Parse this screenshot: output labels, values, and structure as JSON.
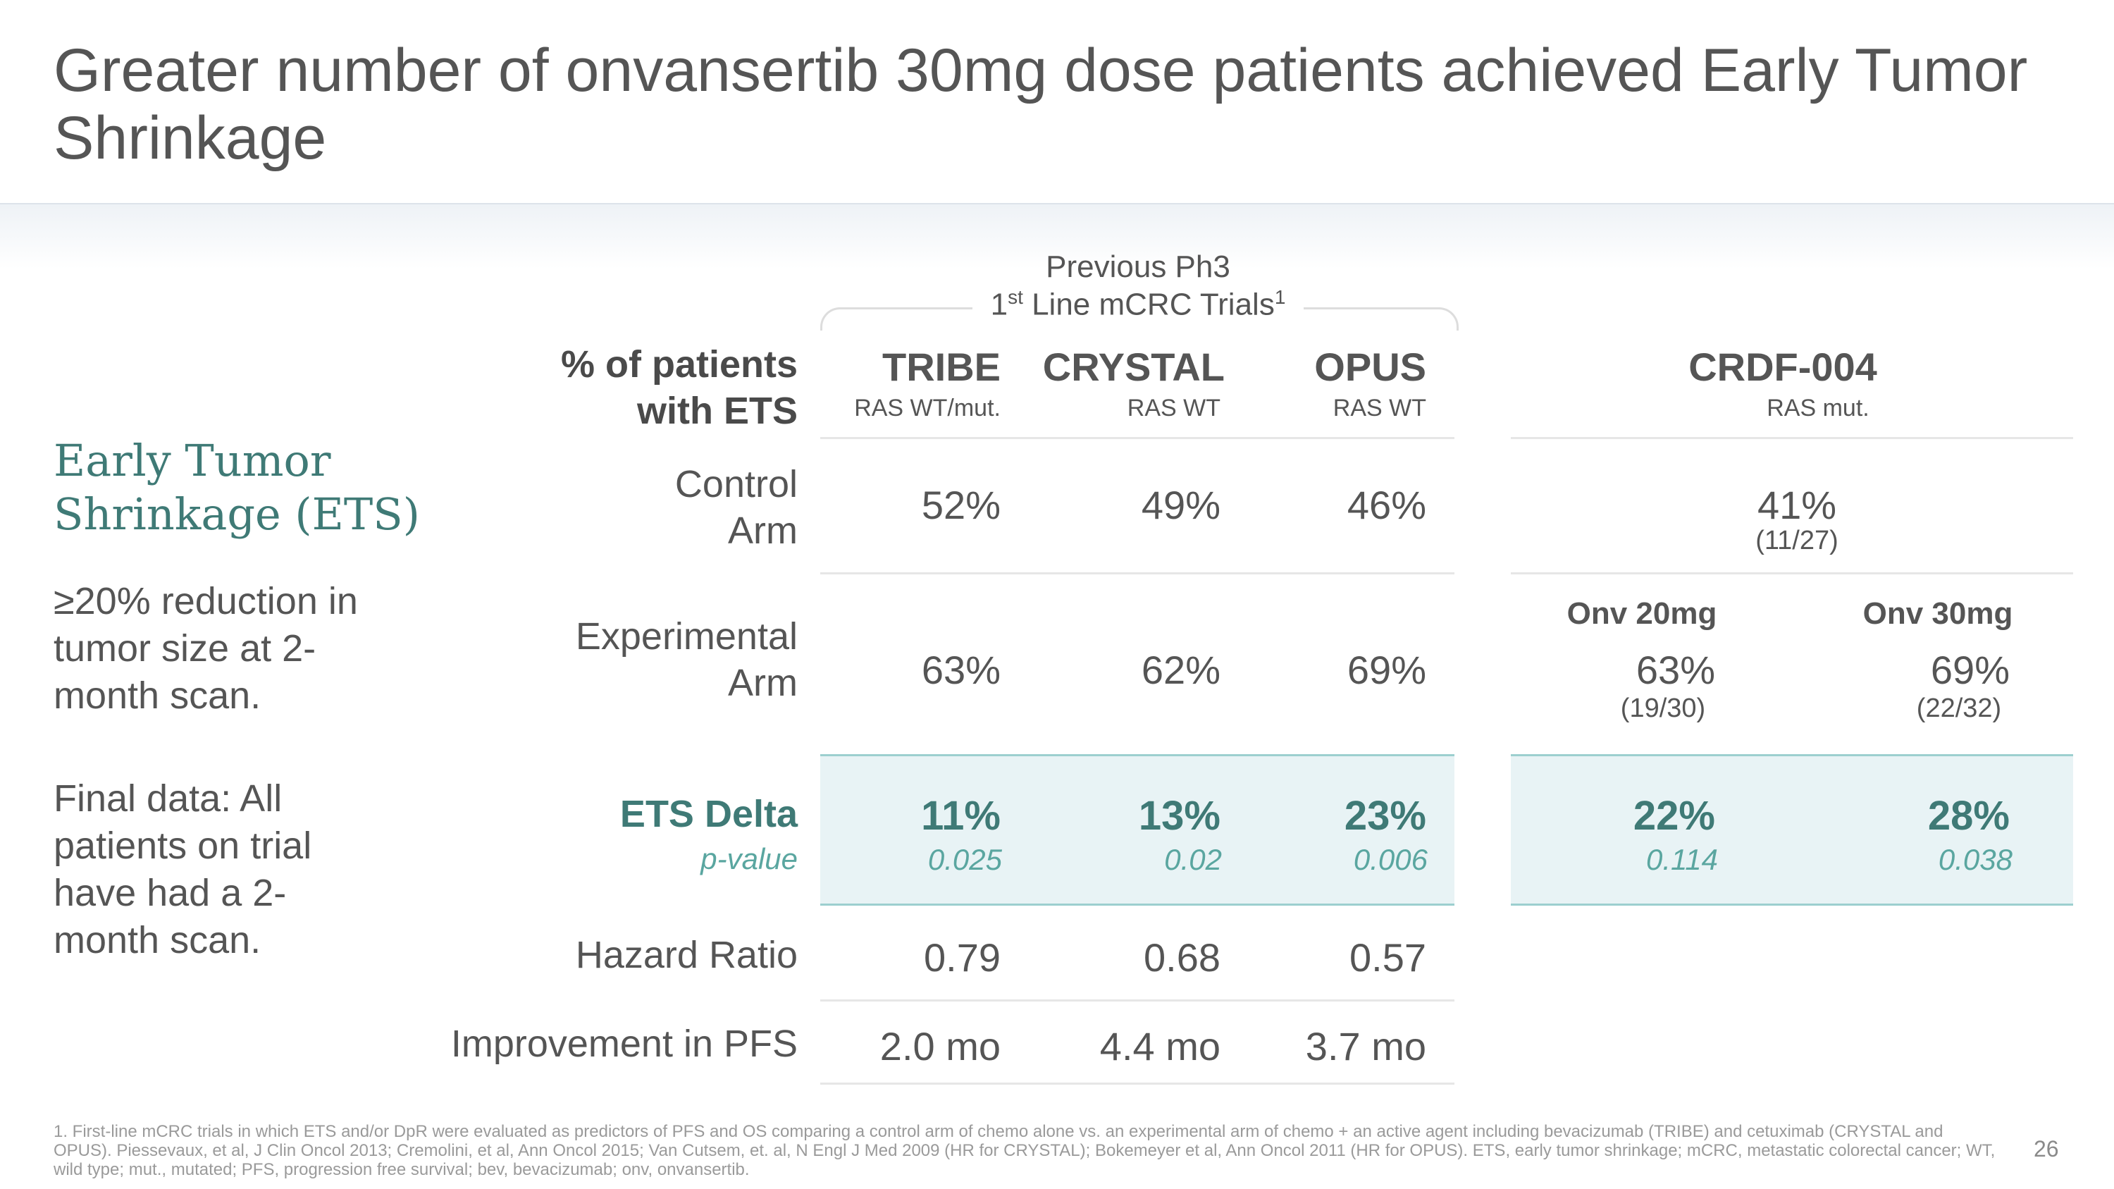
{
  "title": "Greater number of onvansertib 30mg dose patients achieved Early Tumor Shrinkage",
  "sidebar": {
    "heading": "Early Tumor Shrinkage (ETS)",
    "definition": "≥20% reduction in tumor size at 2-month scan.",
    "note": "Final data: All patients on trial have had a 2-month scan."
  },
  "header_group": {
    "line1": "Previous Ph3",
    "line2_prefix": "1",
    "line2_sup": "st",
    "line2_text": " Line mCRC Trials",
    "line2_ref": "1"
  },
  "row_labels": {
    "metric": [
      "% of patients",
      "with ETS"
    ],
    "control": [
      "Control",
      "Arm"
    ],
    "experimental": [
      "Experimental",
      "Arm"
    ],
    "delta": "ETS Delta",
    "pvalue": "p-value",
    "hazard": "Hazard Ratio",
    "pfs": "Improvement in PFS"
  },
  "trials": [
    {
      "name": "TRIBE",
      "ras": "RAS WT/mut.",
      "control": "52%",
      "experimental": "63%",
      "delta": "11%",
      "pvalue": "0.025",
      "hazard": "0.79",
      "pfs": "2.0 mo"
    },
    {
      "name": "CRYSTAL",
      "ras": "RAS WT",
      "control": "49%",
      "experimental": "62%",
      "delta": "13%",
      "pvalue": "0.02",
      "hazard": "0.68",
      "pfs": "4.4 mo"
    },
    {
      "name": "OPUS",
      "ras": "RAS WT",
      "control": "46%",
      "experimental": "69%",
      "delta": "23%",
      "pvalue": "0.006",
      "hazard": "0.57",
      "pfs": "3.7 mo"
    }
  ],
  "crdf": {
    "name": "CRDF-004",
    "ras": "RAS mut.",
    "control": "41%",
    "control_n": "(11/27)",
    "arms": [
      {
        "label": "Onv 20mg",
        "experimental": "63%",
        "n": "(19/30)",
        "delta": "22%",
        "pvalue": "0.114"
      },
      {
        "label": "Onv 30mg",
        "experimental": "69%",
        "n": "(22/32)",
        "delta": "28%",
        "pvalue": "0.038"
      }
    ]
  },
  "footnote": "1. First-line mCRC trials in which ETS and/or DpR were evaluated as predictors of PFS and OS comparing a control arm of chemo alone vs. an experimental arm of chemo + an active agent including bevacizumab (TRIBE) and cetuximab (CRYSTAL and OPUS). Piessevaux, et al, J Clin Oncol 2013; Cremolini, et al, Ann Oncol 2015; Van Cutsem, et. al, N Engl J Med 2009 (HR for CRYSTAL); Bokemeyer et al, Ann Oncol 2011 (HR for OPUS). ETS, early tumor shrinkage; mCRC, metastatic colorectal cancer; WT, wild type; mut., mutated; PFS, progression free survival; bev, bevacizumab; onv, onvansertib.",
  "page_number": "26",
  "colors": {
    "accent": "#3f7a76",
    "pvalue": "#5aa6a0",
    "shade": "#e8f3f5",
    "text": "#555555"
  }
}
